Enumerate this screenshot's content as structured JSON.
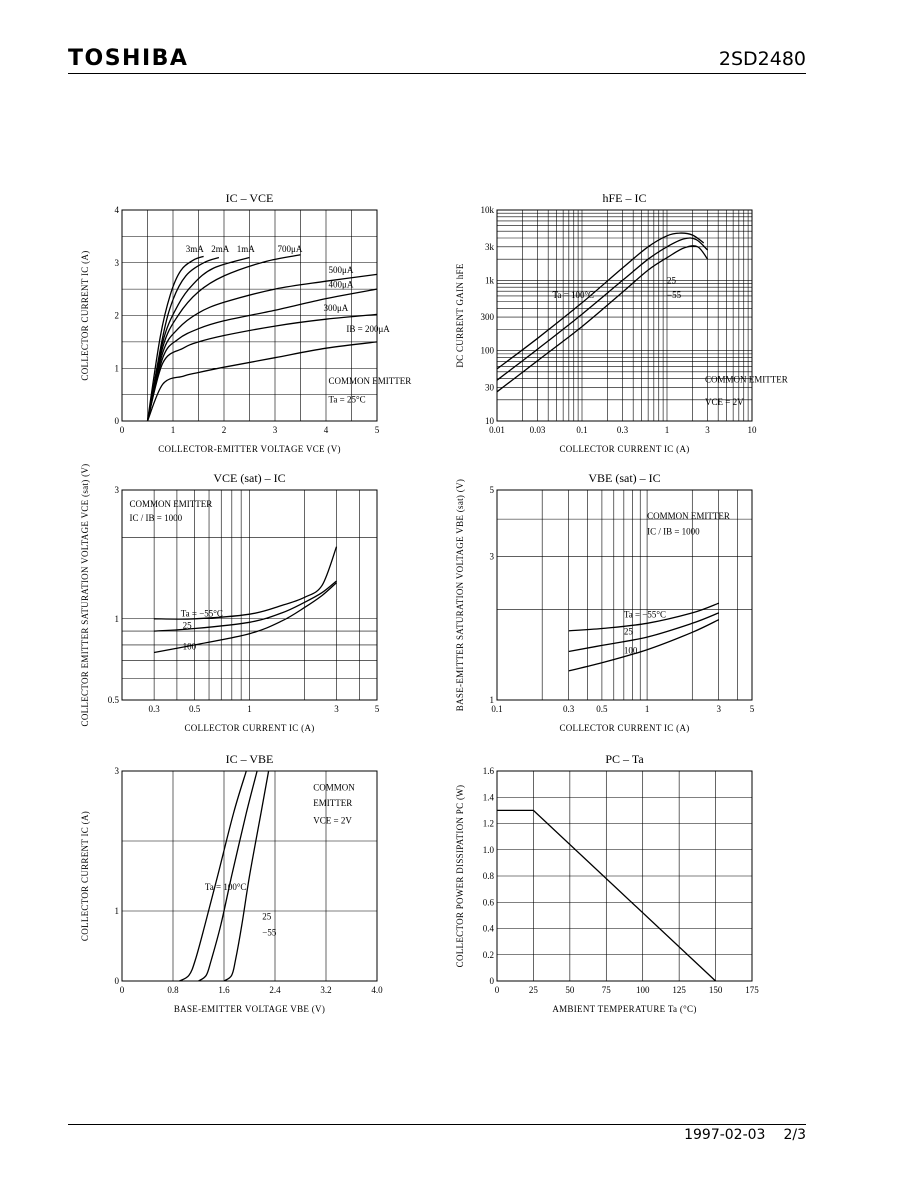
{
  "header": {
    "brand": "TOSHIBA",
    "part": "2SD2480"
  },
  "footer": {
    "date": "1997-02-03",
    "page": "2/3"
  },
  "chart_data": [
    {
      "id": "ic_vce",
      "type": "line",
      "title": "IC – VCE",
      "xlabel": "COLLECTOR-EMITTER VOLTAGE   VCE   (V)",
      "ylabel": "COLLECTOR CURRENT   IC   (A)",
      "xscale": "linear",
      "yscale": "linear",
      "xlim": [
        0,
        5
      ],
      "ylim": [
        0,
        4
      ],
      "xticks": [
        0,
        1,
        2,
        3,
        4,
        5
      ],
      "yticks": [
        0,
        1,
        2,
        3,
        4
      ],
      "xgrid": [
        0.5,
        1,
        1.5,
        2,
        2.5,
        3,
        3.5,
        4,
        4.5
      ],
      "ygrid": [
        0.5,
        1,
        1.5,
        2,
        2.5,
        3,
        3.5
      ],
      "series": [
        {
          "name": "200μA",
          "x": [
            0.5,
            0.8,
            1.2,
            1.5,
            2,
            3,
            4,
            5
          ],
          "y": [
            0,
            0.7,
            0.85,
            0.92,
            1.02,
            1.2,
            1.38,
            1.5
          ]
        },
        {
          "name": "300μA",
          "x": [
            0.5,
            0.8,
            1.2,
            1.5,
            2,
            3,
            4,
            5
          ],
          "y": [
            0,
            1.1,
            1.38,
            1.5,
            1.62,
            1.8,
            1.93,
            2.02
          ]
        },
        {
          "name": "400μA",
          "x": [
            0.5,
            0.8,
            1.1,
            1.5,
            2,
            3,
            4,
            5
          ],
          "y": [
            0,
            1.2,
            1.55,
            1.75,
            1.9,
            2.1,
            2.32,
            2.5
          ]
        },
        {
          "name": "500μA",
          "x": [
            0.5,
            0.8,
            1.1,
            1.5,
            2,
            3,
            4,
            5
          ],
          "y": [
            0,
            1.3,
            1.75,
            2.05,
            2.25,
            2.5,
            2.65,
            2.78
          ]
        },
        {
          "name": "700μA",
          "x": [
            0.5,
            0.8,
            1.1,
            1.5,
            2,
            2.8,
            3.5
          ],
          "y": [
            0,
            1.4,
            2.0,
            2.45,
            2.75,
            3.02,
            3.15
          ]
        },
        {
          "name": "1mA",
          "x": [
            0.5,
            0.8,
            1.1,
            1.4,
            1.8,
            2.5
          ],
          "y": [
            0,
            1.5,
            2.2,
            2.6,
            2.9,
            3.1
          ]
        },
        {
          "name": "2mA",
          "x": [
            0.5,
            0.8,
            1.0,
            1.25,
            1.6,
            1.9
          ],
          "y": [
            0,
            1.6,
            2.3,
            2.75,
            3.0,
            3.1
          ]
        },
        {
          "name": "3mA",
          "x": [
            0.5,
            0.75,
            0.95,
            1.15,
            1.4,
            1.6
          ],
          "y": [
            0,
            1.6,
            2.4,
            2.85,
            3.05,
            3.12
          ]
        }
      ],
      "labels": [
        "3mA",
        "2mA",
        "1mA",
        "700μA",
        "500μA",
        "400μA",
        "300μA",
        "IB = 200μA"
      ],
      "annotations": [
        "COMMON EMITTER",
        "Ta = 25°C"
      ]
    },
    {
      "id": "hfe_ic",
      "type": "line",
      "title": "hFE – IC",
      "xlabel": "COLLECTOR CURRENT   IC   (A)",
      "ylabel": "DC CURRENT GAIN   hFE",
      "xscale": "log",
      "yscale": "log",
      "xlim": [
        0.01,
        10
      ],
      "ylim": [
        10,
        10000
      ],
      "xticks": [
        0.01,
        0.03,
        0.1,
        0.3,
        1,
        3,
        10
      ],
      "xticklabels": [
        "0.01",
        "0.03",
        "0.1",
        "0.3",
        "1",
        "3",
        "10"
      ],
      "yticks": [
        10,
        30,
        100,
        300,
        1000,
        3000,
        10000
      ],
      "yticklabels": [
        "10",
        "30",
        "100",
        "300",
        "1k",
        "3k",
        "10k"
      ],
      "series": [
        {
          "name": "Ta = 100°C",
          "x": [
            0.01,
            0.03,
            0.1,
            0.3,
            0.6,
            1,
            1.4,
            2,
            2.7
          ],
          "y": [
            55,
            150,
            480,
            1500,
            3000,
            4300,
            4700,
            4400,
            3400
          ]
        },
        {
          "name": "25",
          "x": [
            0.01,
            0.03,
            0.1,
            0.3,
            0.6,
            1,
            1.6,
            2.2,
            3
          ],
          "y": [
            38,
            105,
            330,
            1000,
            2000,
            3000,
            3900,
            3800,
            2700
          ]
        },
        {
          "name": "−55",
          "x": [
            0.01,
            0.03,
            0.1,
            0.3,
            0.6,
            1,
            1.6,
            2.3,
            3
          ],
          "y": [
            26,
            72,
            220,
            680,
            1400,
            2100,
            2900,
            3000,
            2000
          ]
        }
      ],
      "annotations": [
        "COMMON EMITTER",
        "VCE = 2V"
      ]
    },
    {
      "id": "vcesat_ic",
      "type": "line",
      "title": "VCE (sat) – IC",
      "xlabel": "COLLECTOR CURRENT   IC   (A)",
      "ylabel": "COLLECTOR EMITTER SATURATION VOLTAGE   VCE (sat)   (V)",
      "xscale": "log",
      "yscale": "log",
      "xlim": [
        0.2,
        5
      ],
      "ylim": [
        0.5,
        3
      ],
      "xticks": [
        0.3,
        0.5,
        1,
        3,
        5
      ],
      "xticklabels": [
        "0.3",
        "0.5",
        "1",
        "3",
        "5"
      ],
      "yticks": [
        0.5,
        1,
        3
      ],
      "yticklabels": [
        "0.5",
        "1",
        "3"
      ],
      "series": [
        {
          "name": "Ta = −55°C",
          "x": [
            0.3,
            0.5,
            1,
            1.5,
            2,
            2.5,
            3
          ],
          "y": [
            1.0,
            1.0,
            1.04,
            1.12,
            1.2,
            1.33,
            1.85
          ]
        },
        {
          "name": "25",
          "x": [
            0.3,
            0.5,
            1,
            1.5,
            2,
            2.5,
            3
          ],
          "y": [
            0.9,
            0.92,
            0.97,
            1.05,
            1.15,
            1.25,
            1.38
          ]
        },
        {
          "name": "100",
          "x": [
            0.3,
            0.5,
            1,
            1.5,
            2,
            2.5,
            3
          ],
          "y": [
            0.75,
            0.8,
            0.88,
            0.98,
            1.1,
            1.22,
            1.36
          ]
        }
      ],
      "annotations": [
        "COMMON EMITTER",
        "IC / IB = 1000"
      ]
    },
    {
      "id": "vbesat_ic",
      "type": "line",
      "title": "VBE (sat) – IC",
      "xlabel": "COLLECTOR CURRENT   IC   (A)",
      "ylabel": "BASE-EMITTER SATURATION VOLTAGE   VBE (sat)   (V)",
      "xscale": "log",
      "yscale": "log",
      "xlim": [
        0.1,
        5
      ],
      "ylim": [
        1,
        5
      ],
      "xticks": [
        0.1,
        0.3,
        0.5,
        1,
        3,
        5
      ],
      "xticklabels": [
        "0.1",
        "0.3",
        "0.5",
        "1",
        "3",
        "5"
      ],
      "yticks": [
        1,
        3,
        5
      ],
      "yticklabels": [
        "1",
        "3",
        "5"
      ],
      "series": [
        {
          "name": "Ta = −55°C",
          "x": [
            0.3,
            0.5,
            1,
            2,
            3
          ],
          "y": [
            1.7,
            1.73,
            1.8,
            1.95,
            2.1
          ]
        },
        {
          "name": "25",
          "x": [
            0.3,
            0.5,
            1,
            2,
            3
          ],
          "y": [
            1.45,
            1.52,
            1.62,
            1.8,
            1.95
          ]
        },
        {
          "name": "100",
          "x": [
            0.3,
            0.5,
            1,
            2,
            3
          ],
          "y": [
            1.25,
            1.33,
            1.47,
            1.68,
            1.85
          ]
        }
      ],
      "annotations": [
        "COMMON EMITTER",
        "IC / IB = 1000"
      ]
    },
    {
      "id": "ic_vbe",
      "type": "line",
      "title": "IC – VBE",
      "xlabel": "BASE-EMITTER VOLTAGE   VBE   (V)",
      "ylabel": "COLLECTOR CURRENT   IC   (A)",
      "xscale": "linear",
      "yscale": "linear",
      "xlim": [
        0,
        4.0
      ],
      "ylim": [
        0,
        3
      ],
      "xticks": [
        0,
        0.8,
        1.6,
        2.4,
        3.2,
        4.0
      ],
      "xticklabels": [
        "0",
        "0.8",
        "1.6",
        "2.4",
        "3.2",
        "4.0"
      ],
      "yticks": [
        0,
        1,
        2,
        3
      ],
      "yticklabels": [
        "0",
        "1",
        "",
        "3"
      ],
      "series": [
        {
          "name": "Ta = 100°C",
          "x": [
            0.9,
            1.05,
            1.15,
            1.3,
            1.5,
            1.75,
            1.95
          ],
          "y": [
            0,
            0.08,
            0.3,
            0.8,
            1.5,
            2.4,
            3.0
          ]
        },
        {
          "name": "25",
          "x": [
            1.2,
            1.32,
            1.4,
            1.55,
            1.72,
            1.95,
            2.12
          ],
          "y": [
            0,
            0.08,
            0.3,
            0.8,
            1.5,
            2.4,
            3.0
          ]
        },
        {
          "name": "−55",
          "x": [
            1.6,
            1.72,
            1.78,
            1.88,
            2.0,
            2.18,
            2.3
          ],
          "y": [
            0,
            0.08,
            0.3,
            0.8,
            1.5,
            2.4,
            3.0
          ]
        }
      ],
      "annotations": [
        "COMMON",
        "EMITTER",
        "VCE = 2V"
      ]
    },
    {
      "id": "pc_ta",
      "type": "line",
      "title": "PC – Ta",
      "xlabel": "AMBIENT TEMPERATURE   Ta   (°C)",
      "ylabel": "COLLECTOR POWER DISSIPATION   PC   (W)",
      "xscale": "linear",
      "yscale": "linear",
      "xlim": [
        0,
        175
      ],
      "ylim": [
        0,
        1.6
      ],
      "xticks": [
        0,
        25,
        50,
        75,
        100,
        125,
        150,
        175
      ],
      "yticks": [
        0,
        0.2,
        0.4,
        0.6,
        0.8,
        1.0,
        1.2,
        1.4,
        1.6
      ],
      "yticklabels": [
        "0",
        "0.2",
        "0.4",
        "0.6",
        "0.8",
        "1.0",
        "1.2",
        "1.4",
        "1.6"
      ],
      "series": [
        {
          "name": "PC",
          "x": [
            0,
            25,
            150
          ],
          "y": [
            1.3,
            1.3,
            0
          ]
        }
      ]
    }
  ]
}
